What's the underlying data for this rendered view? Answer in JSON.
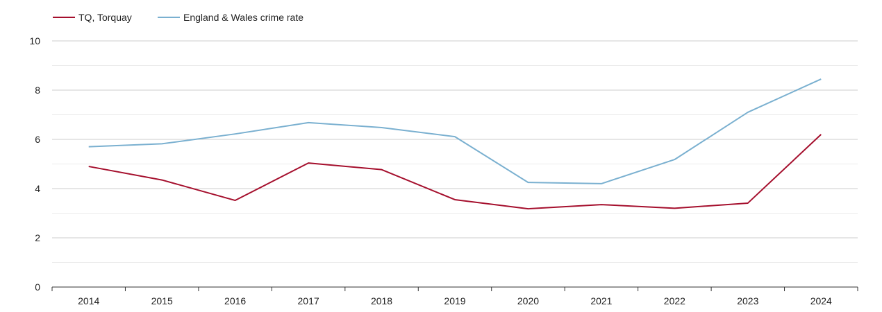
{
  "chart_data": {
    "type": "line",
    "title": "",
    "xlabel": "",
    "ylabel": "",
    "categories": [
      "2014",
      "2015",
      "2016",
      "2017",
      "2018",
      "2019",
      "2020",
      "2021",
      "2022",
      "2023",
      "2024"
    ],
    "ylim": [
      0,
      10
    ],
    "yticks": [
      0,
      2,
      4,
      6,
      8,
      10
    ],
    "ytick_labels": [
      "0",
      "2",
      "4",
      "6",
      "8",
      "10"
    ],
    "minor_gridlines": [
      1,
      3,
      5,
      7,
      9
    ],
    "grid": true,
    "legend_position": "top-left",
    "series": [
      {
        "name": "TQ, Torquay",
        "color": "#a50f2d",
        "values": [
          4.9,
          4.35,
          3.52,
          5.04,
          4.77,
          3.55,
          3.18,
          3.35,
          3.2,
          3.41,
          6.2
        ]
      },
      {
        "name": "England & Wales crime rate",
        "color": "#7ab0d0",
        "values": [
          5.7,
          5.82,
          6.22,
          6.68,
          6.48,
          6.11,
          4.25,
          4.2,
          5.18,
          7.1,
          8.45
        ]
      }
    ]
  }
}
